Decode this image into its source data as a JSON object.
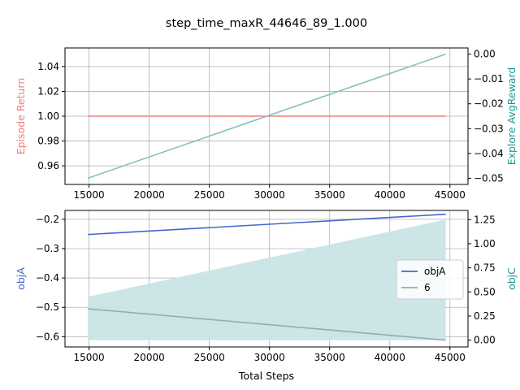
{
  "figure": {
    "title": "step_time_maxR_44646_89_1.000"
  },
  "colors": {
    "episode_return": "#e8837a",
    "explore_avg_reward": "#84c1bf",
    "explore_axis": "#1a9a96",
    "objA": "#4169c9",
    "six": "#9aabab",
    "fill": "#c9e4e5",
    "grid": "#b0b0b0"
  },
  "chart_data": [
    {
      "type": "line",
      "xlabel": "",
      "ylabel": "Episode Return",
      "y2label": "Explore AvgReward",
      "xlim": [
        13000,
        46500
      ],
      "ylim": [
        0.945,
        1.055
      ],
      "y2lim": [
        -0.0525,
        0.0025
      ],
      "grid": true,
      "x_ticks": [
        15000,
        20000,
        25000,
        30000,
        35000,
        40000,
        45000
      ],
      "y_ticks": [
        0.96,
        0.98,
        1.0,
        1.02,
        1.04
      ],
      "y_tick_labels": [
        "0.96",
        "0.98",
        "1.00",
        "1.02",
        "1.04"
      ],
      "y2_ticks": [
        -0.05,
        -0.04,
        -0.03,
        -0.02,
        -0.01,
        0.0
      ],
      "y2_tick_labels": [
        "−0.05",
        "−0.04",
        "−0.03",
        "−0.02",
        "−0.01",
        "0.00"
      ],
      "series": [
        {
          "axis": "left",
          "x": [
            14900,
            44646
          ],
          "values": [
            1.0,
            1.0
          ]
        },
        {
          "axis": "right",
          "x": [
            14900,
            44646
          ],
          "values": [
            -0.05,
            0.0
          ]
        }
      ]
    },
    {
      "type": "line",
      "xlabel": "Total Steps",
      "ylabel": "objA",
      "y2label": "objC",
      "xlim": [
        13000,
        46500
      ],
      "ylim": [
        -0.635,
        -0.17
      ],
      "y2lim": [
        -0.07,
        1.345
      ],
      "grid": true,
      "legend_position": "right",
      "x_ticks": [
        15000,
        20000,
        25000,
        30000,
        35000,
        40000,
        45000
      ],
      "y_ticks": [
        -0.6,
        -0.5,
        -0.4,
        -0.3,
        -0.2
      ],
      "y_tick_labels": [
        "−0.6",
        "−0.5",
        "−0.4",
        "−0.3",
        "−0.2"
      ],
      "y2_ticks": [
        0.0,
        0.25,
        0.5,
        0.75,
        1.0,
        1.25
      ],
      "y2_tick_labels": [
        "0.00",
        "0.25",
        "0.50",
        "0.75",
        "1.00",
        "1.25"
      ],
      "series": [
        {
          "name": "objA",
          "axis": "left",
          "x": [
            14900,
            44646
          ],
          "values": [
            -0.252,
            -0.183
          ]
        },
        {
          "name": "6",
          "axis": "left",
          "x": [
            14900,
            44646
          ],
          "values": [
            -0.505,
            -0.612
          ]
        }
      ],
      "fill_area": {
        "axis": "right",
        "x": [
          14900,
          44646
        ],
        "lower": [
          0.0,
          0.0
        ],
        "upper": [
          0.45,
          1.25
        ]
      }
    }
  ]
}
